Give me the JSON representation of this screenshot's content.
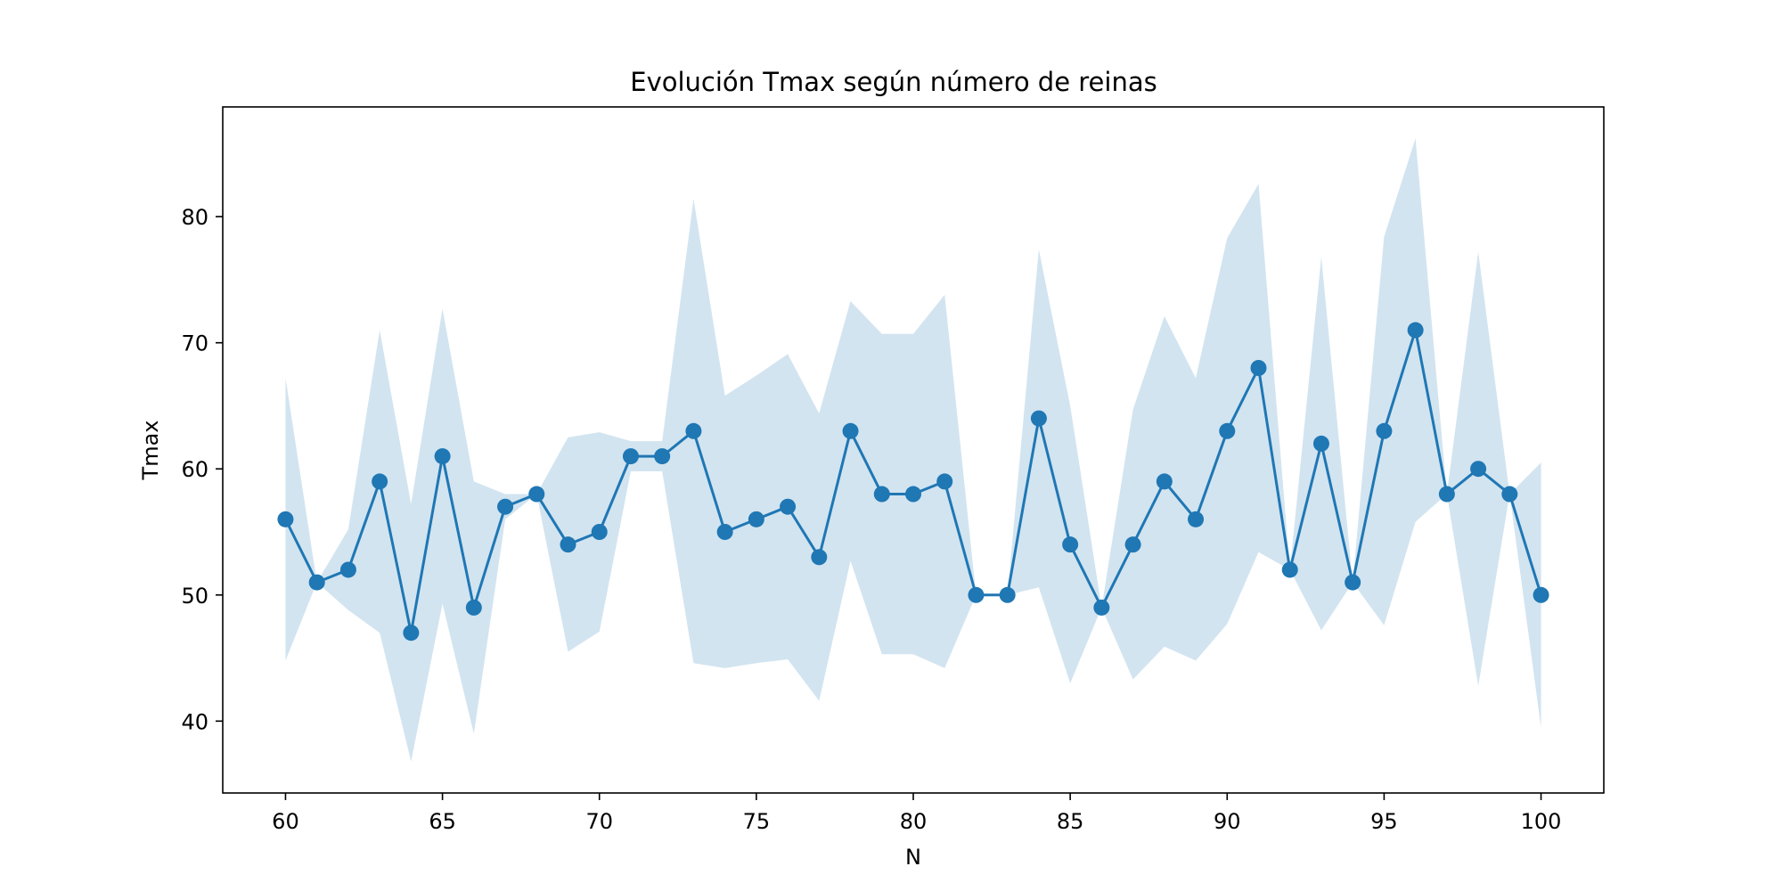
{
  "chart_data": {
    "type": "line",
    "title": "Evolución Tmax según número de reinas",
    "xlabel": "N",
    "ylabel": "Tmax",
    "xlim": [
      58,
      102
    ],
    "ylim": [
      34.3,
      88.7
    ],
    "xticks": [
      60,
      65,
      70,
      75,
      80,
      85,
      90,
      95,
      100
    ],
    "yticks": [
      40,
      50,
      60,
      70,
      80
    ],
    "grid": false,
    "colors": {
      "line": "#1f77b4",
      "band": "#1f77b4"
    },
    "x": [
      60,
      61,
      62,
      63,
      64,
      65,
      66,
      67,
      68,
      69,
      70,
      71,
      72,
      73,
      74,
      75,
      76,
      77,
      78,
      79,
      80,
      81,
      82,
      83,
      84,
      85,
      86,
      87,
      88,
      89,
      90,
      91,
      92,
      93,
      94,
      95,
      96,
      97,
      98,
      99,
      100
    ],
    "y": [
      56,
      51,
      52,
      59,
      47,
      61,
      49,
      57,
      58,
      54,
      55,
      61,
      61,
      63,
      55,
      56,
      57,
      53,
      63,
      58,
      58,
      59,
      50,
      50,
      64,
      54,
      49,
      54,
      59,
      56,
      63,
      68,
      52,
      62,
      51,
      63,
      71,
      58,
      60,
      58,
      50
    ],
    "band_upper": [
      67.2,
      51.0,
      55.2,
      71.0,
      57.2,
      72.7,
      59.0,
      58.0,
      58.0,
      62.5,
      62.9,
      62.2,
      62.2,
      81.4,
      65.8,
      67.4,
      69.1,
      64.4,
      73.3,
      70.7,
      70.7,
      73.8,
      50.0,
      50.0,
      77.4,
      65.0,
      49.0,
      64.7,
      72.1,
      67.2,
      78.3,
      82.6,
      52.0,
      76.8,
      51.0,
      78.4,
      86.2,
      58.0,
      77.2,
      58.0,
      60.5
    ],
    "band_lower": [
      44.8,
      51.0,
      48.8,
      47.0,
      36.8,
      49.3,
      39.0,
      56.0,
      58.0,
      45.5,
      47.1,
      59.8,
      59.8,
      44.6,
      44.2,
      44.6,
      44.9,
      41.6,
      52.7,
      45.3,
      45.3,
      44.2,
      50.0,
      50.0,
      50.6,
      43.0,
      49.0,
      43.3,
      45.9,
      44.8,
      47.7,
      53.4,
      52.0,
      47.2,
      51.0,
      47.6,
      55.8,
      58.0,
      42.8,
      58.0,
      39.5
    ]
  }
}
